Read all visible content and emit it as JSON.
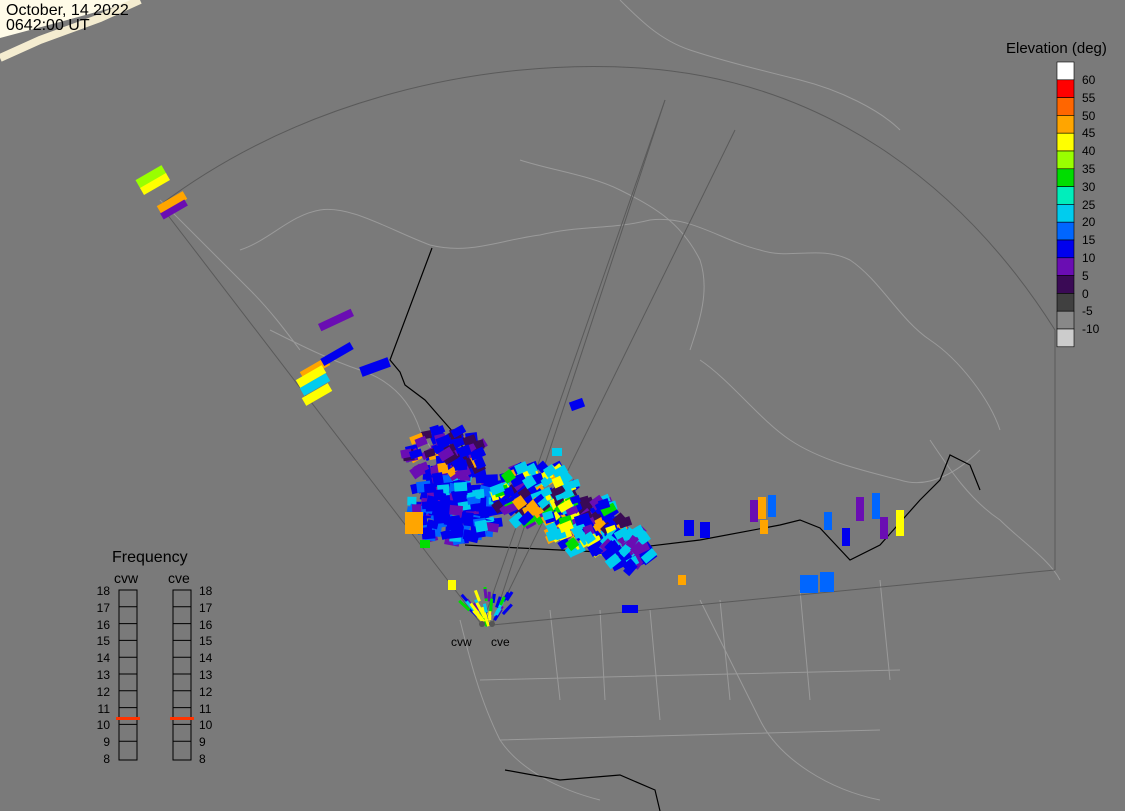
{
  "header": {
    "date": "October, 14 2022",
    "time": "0642:00 UT"
  },
  "elevation_scale": {
    "title": "Elevation (deg)",
    "levels": [
      {
        "label": "60",
        "color": "#ffffff"
      },
      {
        "label": "55",
        "color": "#ff0000"
      },
      {
        "label": "50",
        "color": "#ff6600"
      },
      {
        "label": "45",
        "color": "#ffa500"
      },
      {
        "label": "40",
        "color": "#ffff00"
      },
      {
        "label": "35",
        "color": "#99ff00"
      },
      {
        "label": "30",
        "color": "#00dd00"
      },
      {
        "label": "25",
        "color": "#00eebb"
      },
      {
        "label": "20",
        "color": "#00ccee"
      },
      {
        "label": "15",
        "color": "#0066ff"
      },
      {
        "label": "10",
        "color": "#0000ee"
      },
      {
        "label": "5",
        "color": "#6a0db3"
      },
      {
        "label": "0",
        "color": "#3a0a55"
      },
      {
        "label": "-5",
        "color": "#404040"
      },
      {
        "label": "-10",
        "color": "#888888"
      },
      {
        "label": "",
        "color": "#cccccc"
      }
    ]
  },
  "frequency": {
    "title": "Frequency",
    "radars": [
      {
        "name": "cvw",
        "selected": "11"
      },
      {
        "name": "cve",
        "selected": "11"
      }
    ],
    "ticks": [
      "18",
      "17",
      "16",
      "15",
      "14",
      "13",
      "12",
      "11",
      "10",
      "9",
      "8"
    ]
  },
  "radar_sites": [
    {
      "name": "cvw"
    },
    {
      "name": "cve"
    }
  ]
}
